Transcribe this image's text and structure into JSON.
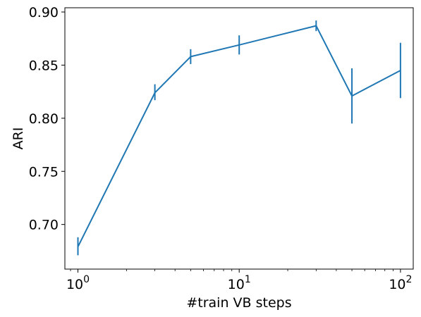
{
  "chart_data": {
    "type": "line",
    "xlabel": "#train VB steps",
    "ylabel": "ARI",
    "xscale": "log",
    "xlim": [
      0.83,
      120
    ],
    "ylim": [
      0.658,
      0.904
    ],
    "x_ticks": [
      {
        "value": 1,
        "base": "10",
        "exp": "0"
      },
      {
        "value": 10,
        "base": "10",
        "exp": "1"
      },
      {
        "value": 100,
        "base": "10",
        "exp": "2"
      }
    ],
    "y_ticks": [
      {
        "value": 0.7,
        "label": "0.70"
      },
      {
        "value": 0.75,
        "label": "0.75"
      },
      {
        "value": 0.8,
        "label": "0.80"
      },
      {
        "value": 0.85,
        "label": "0.85"
      },
      {
        "value": 0.9,
        "label": "0.90"
      }
    ],
    "series": [
      {
        "color": "#1f77b4",
        "points": [
          {
            "x": 1,
            "y": 0.679,
            "err_low": 0.671,
            "err_high": 0.688
          },
          {
            "x": 3,
            "y": 0.824,
            "err_low": 0.817,
            "err_high": 0.832
          },
          {
            "x": 5,
            "y": 0.858,
            "err_low": 0.851,
            "err_high": 0.865
          },
          {
            "x": 10,
            "y": 0.869,
            "err_low": 0.86,
            "err_high": 0.878
          },
          {
            "x": 30,
            "y": 0.887,
            "err_low": 0.882,
            "err_high": 0.892
          },
          {
            "x": 50,
            "y": 0.821,
            "err_low": 0.795,
            "err_high": 0.847
          },
          {
            "x": 100,
            "y": 0.845,
            "err_low": 0.819,
            "err_high": 0.871
          }
        ]
      }
    ],
    "grid": false,
    "legend": "none"
  }
}
